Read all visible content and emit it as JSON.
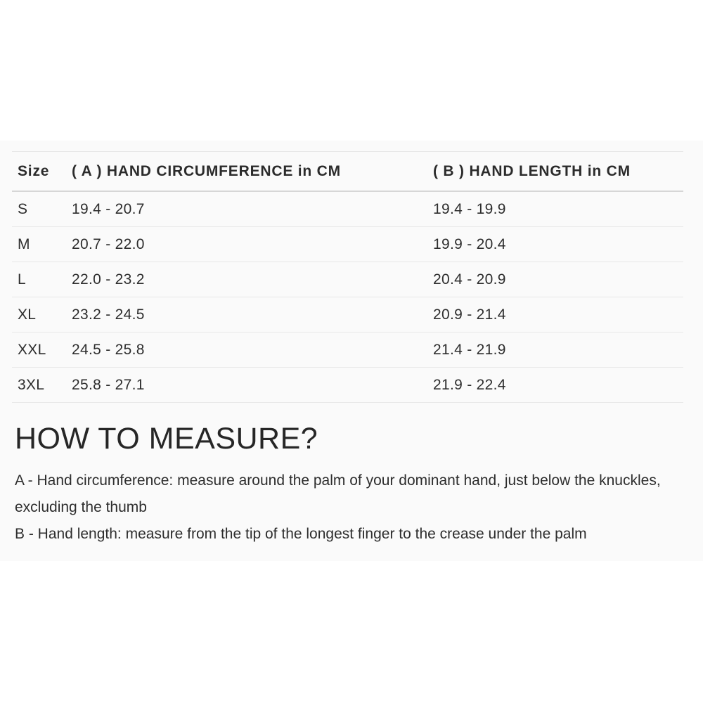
{
  "size_table": {
    "columns": {
      "size": "Size",
      "circumference": "( A ) HAND CIRCUMFERENCE in CM",
      "length": "( B ) HAND LENGTH in CM"
    },
    "rows": [
      {
        "size": "S",
        "circumference": "19.4 - 20.7",
        "length": "19.4 - 19.9"
      },
      {
        "size": "M",
        "circumference": "20.7 - 22.0",
        "length": "19.9 - 20.4"
      },
      {
        "size": "L",
        "circumference": "22.0 - 23.2",
        "length": "20.4 - 20.9"
      },
      {
        "size": "XL",
        "circumference": "23.2 - 24.5",
        "length": "20.9 - 21.4"
      },
      {
        "size": "XXL",
        "circumference": "24.5 - 25.8",
        "length": "21.4 - 21.9"
      },
      {
        "size": "3XL",
        "circumference": "25.8 - 27.1",
        "length": "21.9 - 22.4"
      }
    ]
  },
  "how_to_measure": {
    "heading": "HOW TO MEASURE?",
    "instruction_a": "A - Hand circumference: measure around the palm of your dominant hand, just below the knuckles, excluding the thumb",
    "instruction_b": "B - Hand length: measure from the tip of the longest finger to the crease under the palm"
  },
  "colors": {
    "panel_background": "#fafafa",
    "page_background": "#ffffff",
    "text": "#2d2d2d",
    "row_border": "#e8e8e8",
    "header_border": "#d6d6d6"
  }
}
